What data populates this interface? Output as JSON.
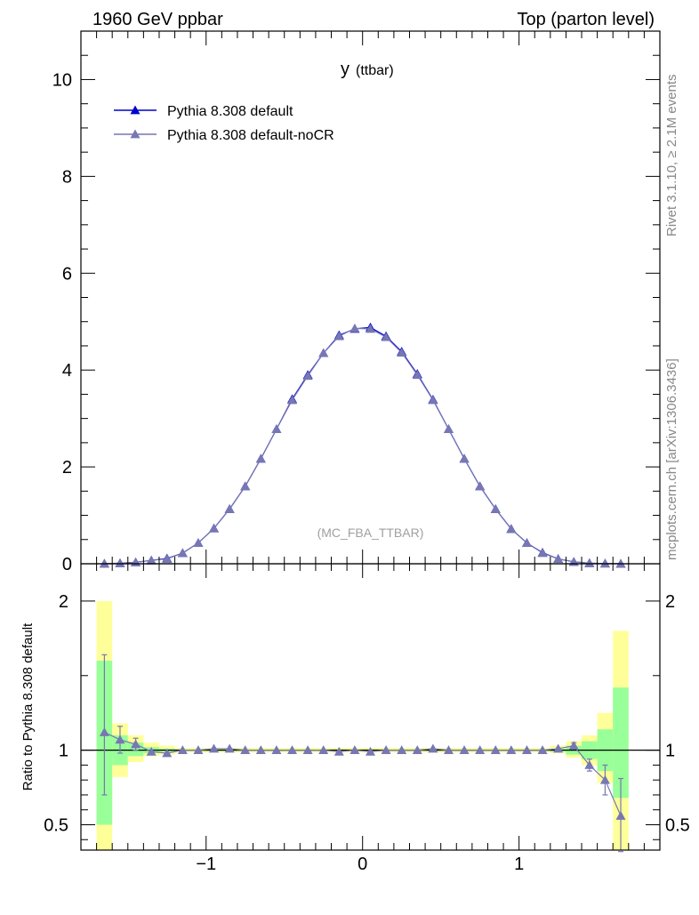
{
  "header": {
    "left": "1960 GeV ppbar",
    "right": "Top (parton level)"
  },
  "side_labels": {
    "rivet": "Rivet 3.1.10, ≥ 2.1M events",
    "source": "mcplots.cern.ch [arXiv:1306.3436]"
  },
  "chart_data": [
    {
      "type": "line",
      "title_main": "y",
      "title_sub": "(ttbar)",
      "watermark": "(MC_FBA_TTBAR)",
      "xlim": [
        -1.8,
        1.9
      ],
      "ylim": [
        0,
        11
      ],
      "yticks": [
        0,
        2,
        4,
        6,
        8,
        10
      ],
      "ytick_labels": [
        "0",
        "2",
        "4",
        "6",
        "8",
        "10"
      ],
      "legend_position": "top-left",
      "x": [
        -1.65,
        -1.55,
        -1.45,
        -1.35,
        -1.25,
        -1.15,
        -1.05,
        -0.95,
        -0.85,
        -0.75,
        -0.65,
        -0.55,
        -0.45,
        -0.35,
        -0.25,
        -0.15,
        -0.05,
        0.05,
        0.15,
        0.25,
        0.35,
        0.45,
        0.55,
        0.65,
        0.75,
        0.85,
        0.95,
        1.05,
        1.15,
        1.25,
        1.35,
        1.45,
        1.55,
        1.65
      ],
      "series": [
        {
          "name": "Pythia 8.308 default",
          "color": "#0000cc",
          "marker": "triangle-filled",
          "values": [
            0.003,
            0.012,
            0.03,
            0.07,
            0.11,
            0.22,
            0.43,
            0.73,
            1.13,
            1.6,
            2.17,
            2.78,
            3.4,
            3.9,
            4.35,
            4.72,
            4.85,
            4.88,
            4.7,
            4.38,
            3.92,
            3.39,
            2.78,
            2.17,
            1.6,
            1.13,
            0.72,
            0.43,
            0.23,
            0.1,
            0.04,
            0.013,
            0.004,
            0.001
          ]
        },
        {
          "name": "Pythia 8.308 default-noCR",
          "color": "#7777b3",
          "marker": "triangle-filled",
          "values": [
            0.003,
            0.012,
            0.03,
            0.07,
            0.1,
            0.22,
            0.43,
            0.73,
            1.13,
            1.6,
            2.17,
            2.78,
            3.38,
            3.88,
            4.35,
            4.7,
            4.86,
            4.85,
            4.68,
            4.36,
            3.9,
            3.38,
            2.78,
            2.17,
            1.6,
            1.13,
            0.72,
            0.43,
            0.22,
            0.1,
            0.04,
            0.012,
            0.004,
            0.001
          ]
        }
      ]
    },
    {
      "type": "line",
      "ylabel": "Ratio to Pythia 8.308 default",
      "xlim": [
        -1.8,
        1.9
      ],
      "ylim": [
        0.33,
        2.25
      ],
      "yticks": [
        0.5,
        1,
        2
      ],
      "ytick_labels": [
        "0.5",
        "1",
        "2"
      ],
      "xticks": [
        -1,
        0,
        1
      ],
      "xtick_labels": [
        "−1",
        "0",
        "1"
      ],
      "band_bins": [
        {
          "x0": -1.7,
          "x1": -1.6,
          "g": [
            0.5,
            1.6
          ],
          "y": [
            0.33,
            2.0
          ]
        },
        {
          "x0": -1.6,
          "x1": -1.5,
          "g": [
            0.9,
            1.1
          ],
          "y": [
            0.82,
            1.18
          ]
        },
        {
          "x0": -1.5,
          "x1": -1.4,
          "g": [
            0.96,
            1.05
          ],
          "y": [
            0.92,
            1.1
          ]
        },
        {
          "x0": -1.4,
          "x1": -1.3,
          "g": [
            0.98,
            1.02
          ],
          "y": [
            0.96,
            1.05
          ]
        },
        {
          "x0": -1.3,
          "x1": -1.2,
          "g": [
            0.99,
            1.01
          ],
          "y": [
            0.97,
            1.03
          ]
        },
        {
          "x0": -1.2,
          "x1": 1.2,
          "g": [
            0.995,
            1.005
          ],
          "y": [
            0.985,
            1.015
          ]
        },
        {
          "x0": 1.2,
          "x1": 1.3,
          "g": [
            0.99,
            1.01
          ],
          "y": [
            0.98,
            1.03
          ]
        },
        {
          "x0": 1.3,
          "x1": 1.4,
          "g": [
            0.97,
            1.03
          ],
          "y": [
            0.95,
            1.06
          ]
        },
        {
          "x0": 1.4,
          "x1": 1.5,
          "g": [
            0.94,
            1.06
          ],
          "y": [
            0.9,
            1.1
          ]
        },
        {
          "x0": 1.5,
          "x1": 1.6,
          "g": [
            0.86,
            1.14
          ],
          "y": [
            0.78,
            1.25
          ]
        },
        {
          "x0": 1.6,
          "x1": 1.7,
          "g": [
            0.68,
            1.42
          ],
          "y": [
            0.33,
            1.8
          ]
        }
      ],
      "series": [
        {
          "name": "Pythia 8.308 default-noCR",
          "color": "#7777b3",
          "x": [
            -1.65,
            -1.55,
            -1.45,
            -1.35,
            -1.25,
            -1.15,
            -1.05,
            -0.95,
            -0.85,
            -0.75,
            -0.65,
            -0.55,
            -0.45,
            -0.35,
            -0.25,
            -0.15,
            -0.05,
            0.05,
            0.15,
            0.25,
            0.35,
            0.45,
            0.55,
            0.65,
            0.75,
            0.85,
            0.95,
            1.05,
            1.15,
            1.25,
            1.35,
            1.45,
            1.55,
            1.65
          ],
          "values": [
            1.12,
            1.07,
            1.04,
            0.99,
            0.98,
            1.0,
            1.0,
            1.01,
            1.01,
            1.0,
            1.0,
            1.0,
            1.0,
            1.0,
            1.0,
            0.99,
            1.0,
            0.99,
            1.0,
            1.0,
            1.0,
            1.01,
            1.0,
            1.0,
            1.0,
            1.0,
            1.0,
            1.0,
            1.0,
            1.01,
            1.03,
            0.9,
            0.8,
            0.56
          ],
          "err_lo": [
            0.42,
            0.09,
            0.04,
            0.01,
            0.01,
            0.01,
            0.01,
            0.01,
            0.01,
            0.01,
            0.01,
            0.01,
            0.01,
            0.01,
            0.01,
            0.01,
            0.01,
            0.01,
            0.01,
            0.01,
            0.01,
            0.01,
            0.01,
            0.01,
            0.01,
            0.01,
            0.01,
            0.01,
            0.01,
            0.01,
            0.02,
            0.04,
            0.1,
            0.24
          ],
          "err_hi": [
            0.52,
            0.09,
            0.04,
            0.01,
            0.01,
            0.01,
            0.01,
            0.01,
            0.01,
            0.01,
            0.01,
            0.01,
            0.01,
            0.01,
            0.01,
            0.01,
            0.01,
            0.01,
            0.01,
            0.01,
            0.01,
            0.01,
            0.01,
            0.01,
            0.01,
            0.01,
            0.01,
            0.01,
            0.01,
            0.01,
            0.02,
            0.04,
            0.1,
            0.25
          ]
        }
      ]
    }
  ]
}
